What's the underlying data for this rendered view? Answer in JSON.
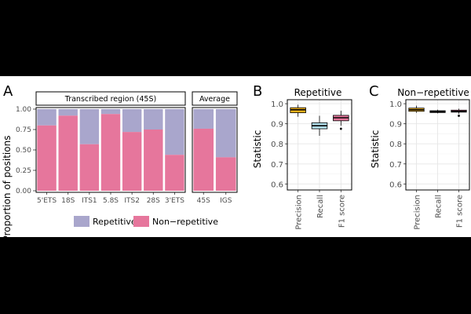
{
  "panel_labels": {
    "a": "A",
    "b": "B",
    "c": "C"
  },
  "colors": {
    "repetitive": "#a9a6cc",
    "non_repetitive": "#e6769c",
    "precision": "#f2b21a",
    "recall": "#b3e0ec",
    "f1": "#e6769c",
    "strip": "#ffffff",
    "grid": "#e6e6e6"
  },
  "legend": {
    "repetitive": "Repetitive",
    "non_repetitive": "Non−repetitive"
  },
  "chart_data": [
    {
      "type": "bar",
      "stacked": true,
      "ylabel": "Proportion of positions",
      "ylim": [
        0,
        1
      ],
      "yticks": [
        "0.00",
        "0.25",
        "0.50",
        "0.75",
        "1.00"
      ],
      "facets": [
        {
          "strip": "Transcribed region (45S)",
          "categories": [
            "5'ETS",
            "18S",
            "ITS1",
            "5.8S",
            "ITS2",
            "28S",
            "3'ETS"
          ],
          "non_repetitive": [
            0.8,
            0.92,
            0.57,
            0.94,
            0.72,
            0.75,
            0.44
          ]
        },
        {
          "strip": "Average",
          "categories": [
            "45S",
            "IGS"
          ],
          "non_repetitive": [
            0.76,
            0.41
          ]
        }
      ],
      "series": [
        {
          "name": "Repetitive"
        },
        {
          "name": "Non−repetitive"
        }
      ],
      "legend_position": "bottom",
      "grid": true
    },
    {
      "type": "box",
      "title": "Repetitive",
      "ylabel": "Statistic",
      "ylim": [
        0.57,
        1.02
      ],
      "yticks": [
        "0.6",
        "0.7",
        "0.8",
        "0.9",
        "1.0"
      ],
      "categories": [
        "Precision",
        "Recall",
        "F1 score"
      ],
      "boxes": [
        {
          "whisker_low": 0.935,
          "q1": 0.955,
          "median": 0.97,
          "q3": 0.98,
          "whisker_high": 0.995,
          "outliers": []
        },
        {
          "whisker_low": 0.84,
          "q1": 0.875,
          "median": 0.89,
          "q3": 0.905,
          "whisker_high": 0.94,
          "outliers": []
        },
        {
          "whisker_low": 0.89,
          "q1": 0.915,
          "median": 0.93,
          "q3": 0.942,
          "whisker_high": 0.965,
          "outliers": [
            0.875
          ]
        }
      ],
      "grid": true
    },
    {
      "type": "box",
      "title": "Non−repetitive",
      "ylabel": "Statistic",
      "ylim": [
        0.57,
        1.02
      ],
      "yticks": [
        "0.6",
        "0.7",
        "0.8",
        "0.9",
        "1.0"
      ],
      "categories": [
        "Precision",
        "Recall",
        "F1 score"
      ],
      "boxes": [
        {
          "whisker_low": 0.955,
          "q1": 0.962,
          "median": 0.97,
          "q3": 0.978,
          "whisker_high": 0.99,
          "outliers": []
        },
        {
          "whisker_low": 0.952,
          "q1": 0.956,
          "median": 0.96,
          "q3": 0.965,
          "whisker_high": 0.97,
          "outliers": []
        },
        {
          "whisker_low": 0.95,
          "q1": 0.958,
          "median": 0.962,
          "q3": 0.968,
          "whisker_high": 0.975,
          "outliers": [
            0.94
          ]
        }
      ],
      "grid": true
    }
  ]
}
